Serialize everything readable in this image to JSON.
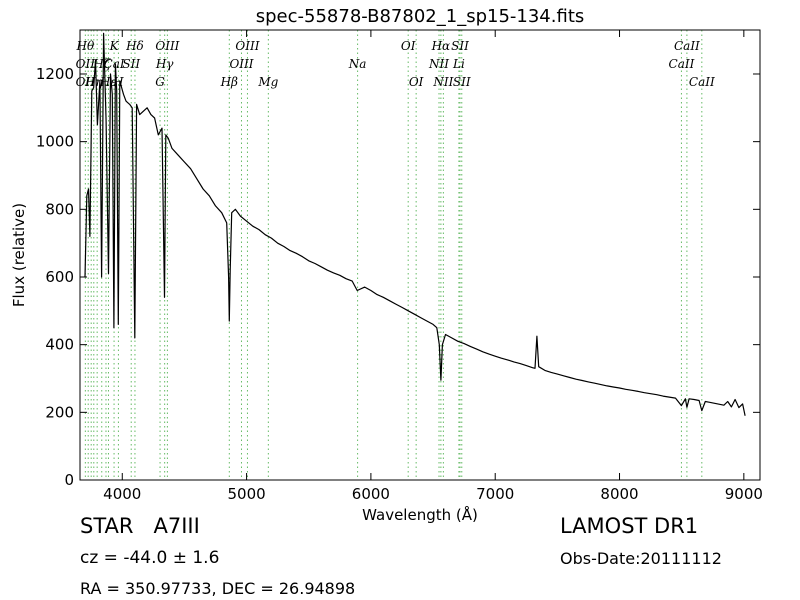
{
  "chart_data": {
    "type": "line",
    "title": "spec-55878-B87802_1_sp15-134.fits",
    "xlabel": "Wavelength (Å)",
    "ylabel": "Flux (relative)",
    "xlim": [
      3660,
      9130
    ],
    "ylim": [
      0,
      1330
    ],
    "xticks": [
      4000,
      5000,
      6000,
      7000,
      8000,
      9000
    ],
    "yticks": [
      0,
      200,
      400,
      600,
      800,
      1000,
      1200
    ],
    "grid": false,
    "line_color": "#000000",
    "marker_line_color": "#66bb66",
    "spectrum": {
      "x": [
        3700,
        3715,
        3728,
        3740,
        3755,
        3770,
        3785,
        3800,
        3820,
        3834,
        3850,
        3870,
        3889,
        3905,
        3920,
        3933,
        3945,
        3955,
        3968,
        3980,
        3995,
        4010,
        4030,
        4060,
        4080,
        4101,
        4115,
        4140,
        4170,
        4200,
        4230,
        4260,
        4290,
        4320,
        4340,
        4350,
        4370,
        4400,
        4450,
        4500,
        4550,
        4600,
        4650,
        4700,
        4750,
        4800,
        4840,
        4855,
        4861,
        4868,
        4880,
        4910,
        4950,
        5000,
        5050,
        5100,
        5150,
        5200,
        5250,
        5300,
        5350,
        5400,
        5450,
        5500,
        5550,
        5600,
        5650,
        5700,
        5750,
        5800,
        5850,
        5890,
        5950,
        6000,
        6050,
        6100,
        6150,
        6200,
        6250,
        6300,
        6350,
        6400,
        6450,
        6500,
        6530,
        6550,
        6563,
        6575,
        6600,
        6650,
        6700,
        6750,
        6800,
        6850,
        6900,
        6950,
        7000,
        7050,
        7100,
        7150,
        7200,
        7250,
        7300,
        7320,
        7335,
        7350,
        7400,
        7450,
        7500,
        7550,
        7600,
        7650,
        7700,
        7750,
        7800,
        7850,
        7900,
        7950,
        8000,
        8050,
        8100,
        8150,
        8200,
        8250,
        8300,
        8350,
        8400,
        8450,
        8498,
        8530,
        8542,
        8560,
        8600,
        8640,
        8662,
        8690,
        8720,
        8760,
        8800,
        8840,
        8870,
        8900,
        8930,
        8960,
        8990,
        9010
      ],
      "y": [
        600,
        840,
        860,
        720,
        1150,
        1160,
        1240,
        1050,
        1180,
        600,
        1320,
        1060,
        610,
        1200,
        1140,
        450,
        1230,
        1150,
        460,
        1180,
        1160,
        1140,
        1120,
        1110,
        1100,
        420,
        1110,
        1080,
        1090,
        1100,
        1080,
        1070,
        1020,
        1040,
        540,
        1020,
        1010,
        980,
        960,
        940,
        920,
        890,
        860,
        840,
        810,
        790,
        760,
        600,
        470,
        620,
        790,
        800,
        780,
        765,
        750,
        740,
        725,
        715,
        700,
        690,
        678,
        670,
        660,
        648,
        640,
        630,
        620,
        612,
        605,
        595,
        588,
        560,
        570,
        560,
        548,
        540,
        530,
        520,
        510,
        500,
        490,
        480,
        470,
        460,
        450,
        400,
        295,
        400,
        430,
        420,
        410,
        403,
        395,
        387,
        379,
        372,
        366,
        360,
        355,
        349,
        344,
        338,
        332,
        330,
        425,
        335,
        324,
        318,
        313,
        308,
        303,
        298,
        294,
        290,
        286,
        282,
        278,
        275,
        272,
        268,
        265,
        262,
        258,
        255,
        252,
        248,
        245,
        242,
        220,
        240,
        215,
        240,
        238,
        235,
        205,
        232,
        230,
        227,
        224,
        221,
        232,
        216,
        238,
        214,
        225,
        190
      ]
    },
    "lines": [
      {
        "x": 3703,
        "labels": [
          {
            "text": "Hθ",
            "row": 1
          },
          {
            "text": "OII",
            "row": 2
          },
          {
            "text": "OII",
            "row": 3
          }
        ]
      },
      {
        "x": 3726
      },
      {
        "x": 3750
      },
      {
        "x": 3771,
        "labels": [
          {
            "text": "Hη",
            "row": 3
          }
        ]
      },
      {
        "x": 3798
      },
      {
        "x": 3835,
        "labels": [
          {
            "text": "Hζ",
            "row": 2
          }
        ]
      },
      {
        "x": 3869
      },
      {
        "x": 3889,
        "labels": [
          {
            "text": "Hε",
            "row": 3
          }
        ]
      },
      {
        "x": 3934,
        "labels": [
          {
            "text": "K",
            "row": 1
          },
          {
            "text": "CaI",
            "row": 2
          }
        ]
      },
      {
        "x": 3969,
        "labels": [
          {
            "text": "H",
            "row": 3
          }
        ]
      },
      {
        "x": 4072,
        "labels": [
          {
            "text": "SII",
            "row": 2
          }
        ]
      },
      {
        "x": 4102,
        "labels": [
          {
            "text": "Hδ",
            "row": 1
          }
        ]
      },
      {
        "x": 4304,
        "labels": [
          {
            "text": "G",
            "row": 3
          }
        ]
      },
      {
        "x": 4341,
        "labels": [
          {
            "text": "Hγ",
            "row": 2
          }
        ]
      },
      {
        "x": 4363,
        "labels": [
          {
            "text": "OIII",
            "row": 1
          }
        ]
      },
      {
        "x": 4861,
        "labels": [
          {
            "text": "Hβ",
            "row": 3
          }
        ]
      },
      {
        "x": 4959,
        "labels": [
          {
            "text": "OIII",
            "row": 2
          }
        ]
      },
      {
        "x": 5007,
        "labels": [
          {
            "text": "OIII",
            "row": 1
          }
        ]
      },
      {
        "x": 5175,
        "labels": [
          {
            "text": "Mg",
            "row": 3
          }
        ]
      },
      {
        "x": 5893,
        "labels": [
          {
            "text": "Na",
            "row": 2
          }
        ]
      },
      {
        "x": 6300,
        "labels": [
          {
            "text": "OI",
            "row": 1
          }
        ]
      },
      {
        "x": 6364,
        "labels": [
          {
            "text": "OI",
            "row": 3
          }
        ]
      },
      {
        "x": 6548,
        "labels": [
          {
            "text": "NII",
            "row": 2
          }
        ]
      },
      {
        "x": 6563,
        "labels": [
          {
            "text": "Hα",
            "row": 1
          }
        ]
      },
      {
        "x": 6583,
        "labels": [
          {
            "text": "NII",
            "row": 3
          }
        ]
      },
      {
        "x": 6708,
        "labels": [
          {
            "text": "Li",
            "row": 2
          }
        ]
      },
      {
        "x": 6717,
        "labels": [
          {
            "text": "SII",
            "row": 1
          }
        ]
      },
      {
        "x": 6731,
        "labels": [
          {
            "text": "SII",
            "row": 3
          }
        ]
      },
      {
        "x": 8498,
        "labels": [
          {
            "text": "CaII",
            "row": 2
          }
        ]
      },
      {
        "x": 8542,
        "labels": [
          {
            "text": "CaII",
            "row": 1
          }
        ]
      },
      {
        "x": 8662,
        "labels": [
          {
            "text": "CaII",
            "row": 3
          }
        ]
      }
    ]
  },
  "info": {
    "object_class": "STAR",
    "subclass": "A7III",
    "survey": "LAMOST DR1",
    "redshift": "cz = -44.0 ± 1.6",
    "obs_date": "Obs-Date:20111112",
    "coords": "RA = 350.97733, DEC = 26.94898"
  }
}
